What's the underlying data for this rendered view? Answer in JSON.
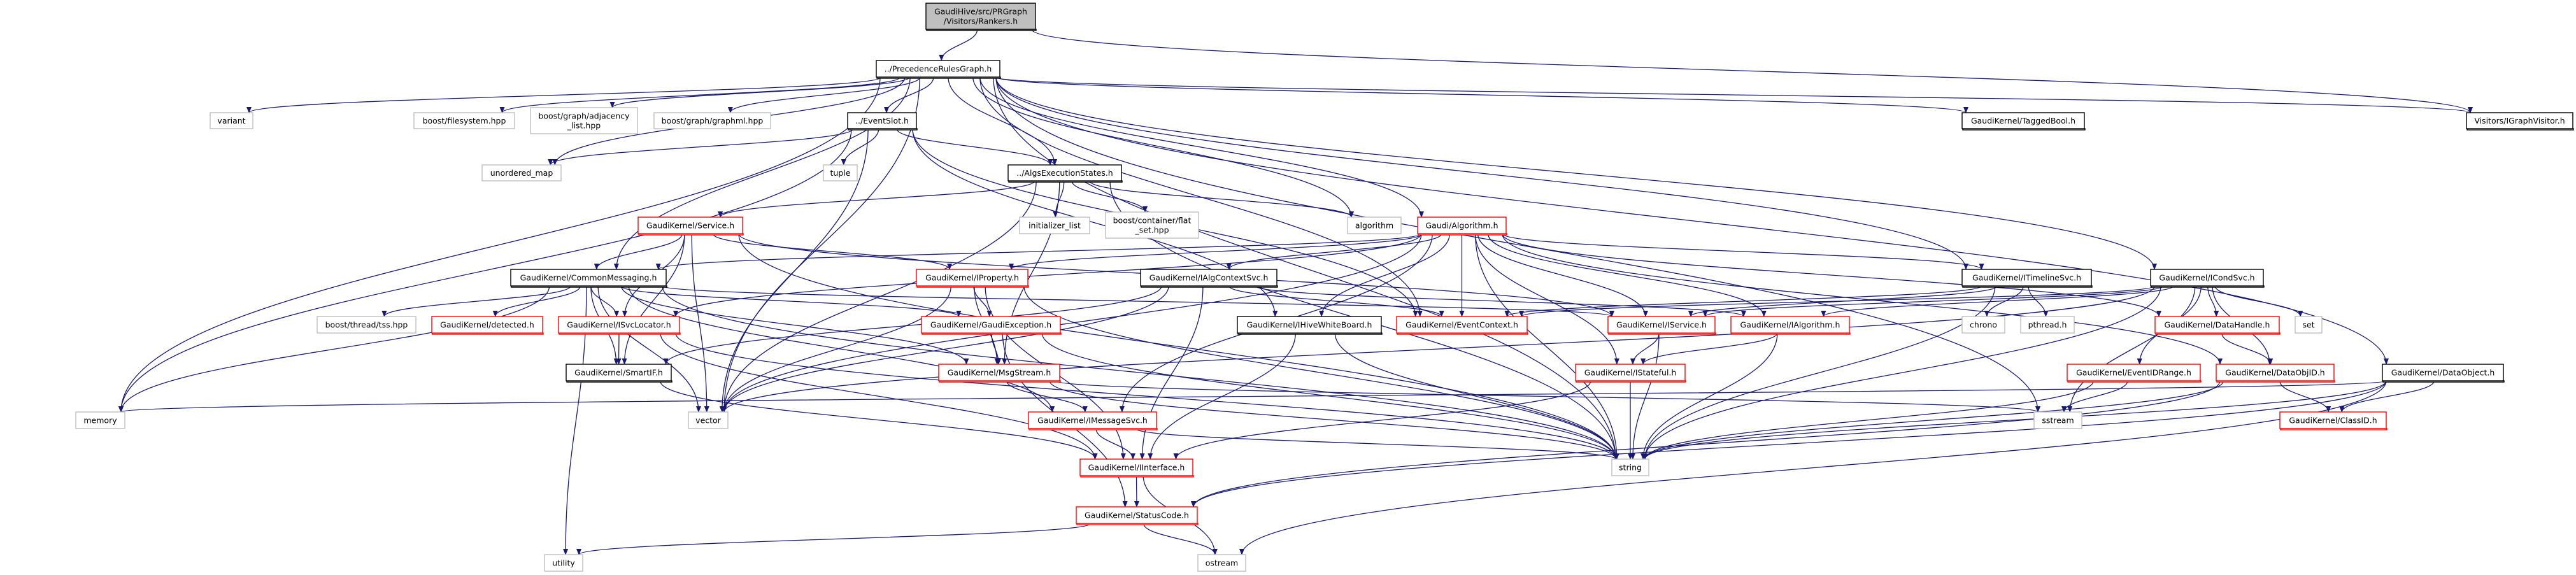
{
  "graph": {
    "edge_color": "#191970",
    "node_colors": {
      "documented": "#000000",
      "truncated": "#ff0000",
      "external": "#bfbfbf",
      "root_fill": "#bfbfbf"
    },
    "nodes": [
      {
        "id": "rankers",
        "label": [
          "GaudiHive/src/PRGraph",
          "/Visitors/Rankers.h"
        ],
        "style": "root"
      },
      {
        "id": "prg",
        "label": [
          "../PrecedenceRulesGraph.h"
        ],
        "style": "documented"
      },
      {
        "id": "variant",
        "label": [
          "variant"
        ],
        "style": "external"
      },
      {
        "id": "bfs",
        "label": [
          "boost/filesystem.hpp"
        ],
        "style": "external"
      },
      {
        "id": "badj",
        "label": [
          "boost/graph/adjacency",
          "_list.hpp"
        ],
        "style": "external"
      },
      {
        "id": "bgml",
        "label": [
          "boost/graph/graphml.hpp"
        ],
        "style": "external"
      },
      {
        "id": "eventslot",
        "label": [
          "../EventSlot.h"
        ],
        "style": "documented"
      },
      {
        "id": "tagged",
        "label": [
          "GaudiKernel/TaggedBool.h"
        ],
        "style": "documented"
      },
      {
        "id": "igv",
        "label": [
          "Visitors/IGraphVisitor.h"
        ],
        "style": "documented"
      },
      {
        "id": "umap",
        "label": [
          "unordered_map"
        ],
        "style": "external"
      },
      {
        "id": "tuple",
        "label": [
          "tuple"
        ],
        "style": "external"
      },
      {
        "id": "aes",
        "label": [
          "../AlgsExecutionStates.h"
        ],
        "style": "documented"
      },
      {
        "id": "service",
        "label": [
          "GaudiKernel/Service.h"
        ],
        "style": "truncated"
      },
      {
        "id": "initlist",
        "label": [
          "initializer_list"
        ],
        "style": "external"
      },
      {
        "id": "flatset",
        "label": [
          "boost/container/flat",
          "_set.hpp"
        ],
        "style": "external"
      },
      {
        "id": "algorithm",
        "label": [
          "algorithm"
        ],
        "style": "external"
      },
      {
        "id": "galg",
        "label": [
          "Gaudi/Algorithm.h"
        ],
        "style": "truncated"
      },
      {
        "id": "cmsg",
        "label": [
          "GaudiKernel/CommonMessaging.h"
        ],
        "style": "documented"
      },
      {
        "id": "iprop",
        "label": [
          "GaudiKernel/IProperty.h"
        ],
        "style": "truncated"
      },
      {
        "id": "iacs",
        "label": [
          "GaudiKernel/IAlgContextSvc.h"
        ],
        "style": "documented"
      },
      {
        "id": "itl",
        "label": [
          "GaudiKernel/ITimelineSvc.h"
        ],
        "style": "documented"
      },
      {
        "id": "icond",
        "label": [
          "GaudiKernel/ICondSvc.h"
        ],
        "style": "documented"
      },
      {
        "id": "tss",
        "label": [
          "boost/thread/tss.hpp"
        ],
        "style": "external"
      },
      {
        "id": "detected",
        "label": [
          "GaudiKernel/detected.h"
        ],
        "style": "truncated"
      },
      {
        "id": "isvcl",
        "label": [
          "GaudiKernel/ISvcLocator.h"
        ],
        "style": "truncated"
      },
      {
        "id": "gexc",
        "label": [
          "GaudiKernel/GaudiException.h"
        ],
        "style": "truncated"
      },
      {
        "id": "ihwb",
        "label": [
          "GaudiKernel/IHiveWhiteBoard.h"
        ],
        "style": "documented"
      },
      {
        "id": "evctx",
        "label": [
          "GaudiKernel/EventContext.h"
        ],
        "style": "truncated"
      },
      {
        "id": "iservice",
        "label": [
          "GaudiKernel/IService.h"
        ],
        "style": "truncated"
      },
      {
        "id": "ialg",
        "label": [
          "GaudiKernel/IAlgorithm.h"
        ],
        "style": "truncated"
      },
      {
        "id": "chrono",
        "label": [
          "chrono"
        ],
        "style": "external"
      },
      {
        "id": "pthread",
        "label": [
          "pthread.h"
        ],
        "style": "external"
      },
      {
        "id": "dhandle",
        "label": [
          "GaudiKernel/DataHandle.h"
        ],
        "style": "truncated"
      },
      {
        "id": "set",
        "label": [
          "set"
        ],
        "style": "external"
      },
      {
        "id": "smartif",
        "label": [
          "GaudiKernel/SmartIF.h"
        ],
        "style": "documented"
      },
      {
        "id": "msgstream",
        "label": [
          "GaudiKernel/MsgStream.h"
        ],
        "style": "truncated"
      },
      {
        "id": "istateful",
        "label": [
          "GaudiKernel/IStateful.h"
        ],
        "style": "truncated"
      },
      {
        "id": "eidr",
        "label": [
          "GaudiKernel/EventIDRange.h"
        ],
        "style": "truncated"
      },
      {
        "id": "dobjid",
        "label": [
          "GaudiKernel/DataObjID.h"
        ],
        "style": "truncated"
      },
      {
        "id": "dobj",
        "label": [
          "GaudiKernel/DataObject.h"
        ],
        "style": "documented"
      },
      {
        "id": "memory",
        "label": [
          "memory"
        ],
        "style": "external"
      },
      {
        "id": "vector",
        "label": [
          "vector"
        ],
        "style": "external"
      },
      {
        "id": "imsgsvc",
        "label": [
          "GaudiKernel/IMessageSvc.h"
        ],
        "style": "truncated"
      },
      {
        "id": "sstream",
        "label": [
          "sstream"
        ],
        "style": "external"
      },
      {
        "id": "classid",
        "label": [
          "GaudiKernel/ClassID.h"
        ],
        "style": "truncated"
      },
      {
        "id": "iface",
        "label": [
          "GaudiKernel/IInterface.h"
        ],
        "style": "truncated"
      },
      {
        "id": "string",
        "label": [
          "string"
        ],
        "style": "external"
      },
      {
        "id": "statuscode",
        "label": [
          "GaudiKernel/StatusCode.h"
        ],
        "style": "truncated"
      },
      {
        "id": "utility",
        "label": [
          "utility"
        ],
        "style": "external"
      },
      {
        "id": "ostream",
        "label": [
          "ostream"
        ],
        "style": "external"
      }
    ],
    "edges": [
      [
        "rankers",
        "prg"
      ],
      [
        "rankers",
        "igv"
      ],
      [
        "prg",
        "variant"
      ],
      [
        "prg",
        "bfs"
      ],
      [
        "prg",
        "badj"
      ],
      [
        "prg",
        "bgml"
      ],
      [
        "prg",
        "eventslot"
      ],
      [
        "prg",
        "aes"
      ],
      [
        "prg",
        "algorithm"
      ],
      [
        "prg",
        "galg"
      ],
      [
        "prg",
        "cmsg"
      ],
      [
        "prg",
        "umap"
      ],
      [
        "prg",
        "memory"
      ],
      [
        "prg",
        "vector"
      ],
      [
        "prg",
        "string"
      ],
      [
        "prg",
        "sstream"
      ],
      [
        "prg",
        "tagged"
      ],
      [
        "prg",
        "itl"
      ],
      [
        "prg",
        "icond"
      ],
      [
        "prg",
        "dobj"
      ],
      [
        "prg",
        "igv"
      ],
      [
        "prg",
        "evctx"
      ],
      [
        "eventslot",
        "tuple"
      ],
      [
        "eventslot",
        "umap"
      ],
      [
        "eventslot",
        "aes"
      ],
      [
        "eventslot",
        "vector"
      ],
      [
        "eventslot",
        "evctx"
      ],
      [
        "eventslot",
        "memory"
      ],
      [
        "eventslot",
        "ihwb"
      ],
      [
        "aes",
        "initlist"
      ],
      [
        "aes",
        "flatset"
      ],
      [
        "aes",
        "algorithm"
      ],
      [
        "aes",
        "service"
      ],
      [
        "aes",
        "msgstream"
      ],
      [
        "aes",
        "string"
      ],
      [
        "aes",
        "vector"
      ],
      [
        "service",
        "cmsg"
      ],
      [
        "service",
        "isvcl"
      ],
      [
        "service",
        "iprop"
      ],
      [
        "service",
        "iservice"
      ],
      [
        "service",
        "smartif"
      ],
      [
        "service",
        "vector"
      ],
      [
        "service",
        "string"
      ],
      [
        "galg",
        "iprop"
      ],
      [
        "galg",
        "iacs"
      ],
      [
        "galg",
        "cmsg"
      ],
      [
        "galg",
        "isvcl"
      ],
      [
        "galg",
        "ihwb"
      ],
      [
        "galg",
        "evctx"
      ],
      [
        "galg",
        "iservice"
      ],
      [
        "galg",
        "ialg"
      ],
      [
        "galg",
        "istateful"
      ],
      [
        "galg",
        "string"
      ],
      [
        "galg",
        "vector"
      ],
      [
        "galg",
        "dhandle"
      ],
      [
        "galg",
        "dobjid"
      ],
      [
        "galg",
        "itl"
      ],
      [
        "galg",
        "imsgsvc"
      ],
      [
        "cmsg",
        "tss"
      ],
      [
        "cmsg",
        "detected"
      ],
      [
        "cmsg",
        "isvcl"
      ],
      [
        "cmsg",
        "smartif"
      ],
      [
        "cmsg",
        "memory"
      ],
      [
        "cmsg",
        "vector"
      ],
      [
        "cmsg",
        "utility"
      ],
      [
        "cmsg",
        "gexc"
      ],
      [
        "cmsg",
        "msgstream"
      ],
      [
        "cmsg",
        "imsgsvc"
      ],
      [
        "cmsg",
        "iservice"
      ],
      [
        "cmsg",
        "string"
      ],
      [
        "iprop",
        "gexc"
      ],
      [
        "iprop",
        "msgstream"
      ],
      [
        "iprop",
        "iface"
      ],
      [
        "iprop",
        "string"
      ],
      [
        "iprop",
        "vector"
      ],
      [
        "iacs",
        "iface"
      ],
      [
        "iacs",
        "ialg"
      ],
      [
        "iacs",
        "evctx"
      ],
      [
        "iacs",
        "vector"
      ],
      [
        "iacs",
        "smartif"
      ],
      [
        "isvcl",
        "smartif"
      ],
      [
        "isvcl",
        "iface"
      ],
      [
        "isvcl",
        "string"
      ],
      [
        "smartif",
        "iface"
      ],
      [
        "gexc",
        "msgstream"
      ],
      [
        "gexc",
        "statuscode"
      ],
      [
        "gexc",
        "string"
      ],
      [
        "msgstream",
        "imsgsvc"
      ],
      [
        "msgstream",
        "string"
      ],
      [
        "msgstream",
        "sstream"
      ],
      [
        "imsgsvc",
        "iface"
      ],
      [
        "imsgsvc",
        "string"
      ],
      [
        "iface",
        "statuscode"
      ],
      [
        "iface",
        "ostream"
      ],
      [
        "statuscode",
        "ostream"
      ],
      [
        "statuscode",
        "utility"
      ],
      [
        "ihwb",
        "iface"
      ],
      [
        "ihwb",
        "string"
      ],
      [
        "iservice",
        "istateful"
      ],
      [
        "iservice",
        "string"
      ],
      [
        "istateful",
        "iface"
      ],
      [
        "istateful",
        "string"
      ],
      [
        "ialg",
        "istateful"
      ],
      [
        "ialg",
        "string"
      ],
      [
        "itl",
        "iservice"
      ],
      [
        "itl",
        "evctx"
      ],
      [
        "itl",
        "chrono"
      ],
      [
        "itl",
        "pthread"
      ],
      [
        "itl",
        "string"
      ],
      [
        "icond",
        "iservice"
      ],
      [
        "icond",
        "ialg"
      ],
      [
        "icond",
        "evctx"
      ],
      [
        "icond",
        "eidr"
      ],
      [
        "icond",
        "dhandle"
      ],
      [
        "icond",
        "dobjid"
      ],
      [
        "icond",
        "set"
      ],
      [
        "icond",
        "string"
      ],
      [
        "icond",
        "sstream"
      ],
      [
        "icond",
        "vector"
      ],
      [
        "dhandle",
        "dobjid"
      ],
      [
        "dobjid",
        "classid"
      ],
      [
        "dobjid",
        "string"
      ],
      [
        "dobjid",
        "statuscode"
      ],
      [
        "eidr",
        "sstream"
      ],
      [
        "eidr",
        "string"
      ],
      [
        "dobj",
        "classid"
      ],
      [
        "dobj",
        "string"
      ],
      [
        "dobj",
        "statuscode"
      ],
      [
        "dobj",
        "ostream"
      ],
      [
        "dobj",
        "memory"
      ]
    ]
  }
}
